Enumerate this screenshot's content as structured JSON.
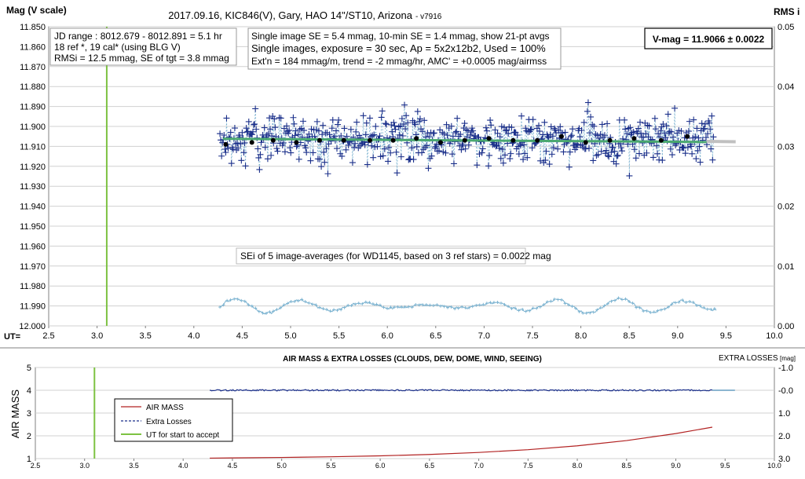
{
  "chart_data": [
    {
      "type": "scatter",
      "title": "2017.09.16,  KIC846(V),  Gary,  HAO 14\"/ST10, Arizona",
      "title_suffix": "- v7916",
      "ylabel_left": "Mag (V scale)",
      "ylabel_right": "RMS i",
      "xlabel": "UT=",
      "xlim": [
        2.5,
        10.0
      ],
      "x_ticks": [
        "2.5",
        "3.0",
        "3.5",
        "4.0",
        "4.5",
        "5.0",
        "5.5",
        "6.0",
        "6.5",
        "7.0",
        "7.5",
        "8.0",
        "8.5",
        "9.0",
        "9.5",
        "10.0"
      ],
      "ylim": [
        11.85,
        12.0
      ],
      "y_inverted": true,
      "y_ticks": [
        "11.850",
        "11.860",
        "11.870",
        "11.880",
        "11.890",
        "11.900",
        "11.910",
        "11.920",
        "11.930",
        "11.940",
        "11.950",
        "11.960",
        "11.970",
        "11.980",
        "11.990",
        "12.000"
      ],
      "y2lim": [
        0.0,
        0.05
      ],
      "y2_ticks": [
        "0.00",
        "0.01",
        "0.02",
        "0.03",
        "0.04",
        "0.05"
      ],
      "annotations": {
        "jd_box": [
          "JD range : 8012.679 - 8012.891 =  5.1  hr",
          "18 ref *, 19 cal* (using BLG V)",
          "RMSi = 12.5 mmag, SE of tgt = 3.8 mmag"
        ],
        "info_box": [
          "Single image SE = 5.4 mmag, 10-min SE = 1.4 mmag, show 21-pt avgs",
          "Single images, exposure = 30 sec, Ap = 5x2x12b2, Used = 100%",
          "Ext'n = 184 mmag/m, trend =  -2 mmag/hr, AMC' = +0.0005 mag/airmss"
        ],
        "vmag_box": "V-mag = 11.9066 ± 0.0022",
        "sei_note": "SEi of 5 image-averages (for WD1145, based on 3 ref stars) = 0.0022 mag"
      },
      "series": [
        {
          "name": "single images",
          "marker": "plus",
          "color": "#1a2f8a",
          "x_range": [
            4.27,
            9.37
          ],
          "mean": 11.9066,
          "scatter_sd": 0.0055,
          "n": 600
        },
        {
          "name": "21-pt averages",
          "marker": "dot",
          "color": "#000000",
          "x": [
            4.33,
            4.6,
            4.82,
            5.06,
            5.3,
            5.55,
            5.82,
            6.06,
            6.3,
            6.55,
            6.8,
            7.05,
            7.3,
            7.55,
            7.8,
            8.05,
            8.3,
            8.55,
            8.83,
            9.1
          ],
          "y": [
            11.909,
            11.908,
            11.907,
            11.908,
            11.907,
            11.907,
            11.907,
            11.907,
            11.906,
            11.908,
            11.907,
            11.906,
            11.907,
            11.907,
            11.905,
            11.908,
            11.907,
            11.906,
            11.907,
            11.905
          ]
        },
        {
          "name": "trend",
          "color": "#4aa870",
          "x": [
            4.3,
            9.3
          ],
          "y": [
            11.9062,
            11.9078
          ]
        },
        {
          "name": "model",
          "color": "#c0c0c0",
          "x": [
            9.3,
            9.6
          ],
          "y": [
            11.9075,
            11.9077
          ]
        },
        {
          "name": "RMSi",
          "axis": "right",
          "marker": "plus",
          "color": "#7ab2d0",
          "x_range": [
            4.27,
            9.4
          ],
          "mean": 0.0033,
          "amp": 0.0012
        }
      ],
      "ut_start_line": {
        "x": 3.1,
        "color": "#7dc242"
      }
    },
    {
      "type": "line",
      "title": "AIR MASS & EXTRA LOSSES (CLOUDS, DEW, DOME, WIND, SEEING)",
      "ylabel_left": "AIR MASS",
      "ylabel_right": "EXTRA LOSSES",
      "ylabel_right_unit": "[mag]",
      "xlim": [
        2.5,
        10.0
      ],
      "x_ticks": [
        "2.5",
        "3.0",
        "3.5",
        "4.0",
        "4.5",
        "5.0",
        "5.5",
        "6.0",
        "6.5",
        "7.0",
        "7.5",
        "8.0",
        "8.5",
        "9.0",
        "9.5",
        "10.0"
      ],
      "ylim": [
        1,
        5
      ],
      "y_ticks": [
        "1",
        "2",
        "3",
        "4",
        "5"
      ],
      "y2lim": [
        -1.0,
        3.0
      ],
      "y2_inverted": true,
      "y2_ticks": [
        "-1.0",
        "-0.0",
        "1.0",
        "2.0",
        "3.0"
      ],
      "legend_position": "left",
      "legend": [
        "AIR MASS",
        "Extra Losses",
        "UT for start to accept"
      ],
      "series": [
        {
          "name": "AIR MASS",
          "color": "#b22222",
          "x": [
            4.27,
            4.5,
            5.0,
            5.5,
            6.0,
            6.5,
            7.0,
            7.5,
            8.0,
            8.5,
            9.0,
            9.37
          ],
          "y": [
            1.02,
            1.03,
            1.05,
            1.08,
            1.12,
            1.18,
            1.27,
            1.39,
            1.56,
            1.79,
            2.1,
            2.38
          ]
        },
        {
          "name": "Extra Losses",
          "color": "#1a2f8a",
          "x_range": [
            4.27,
            9.37
          ],
          "mean": 0.0,
          "noise": 0.03
        },
        {
          "name": "Extra Losses fit",
          "color": "#1a6ea0",
          "x": [
            9.37,
            9.6
          ],
          "y": [
            0.0,
            0.0
          ]
        }
      ],
      "ut_start_line": {
        "x": 3.1,
        "color": "#7dc242"
      }
    }
  ]
}
